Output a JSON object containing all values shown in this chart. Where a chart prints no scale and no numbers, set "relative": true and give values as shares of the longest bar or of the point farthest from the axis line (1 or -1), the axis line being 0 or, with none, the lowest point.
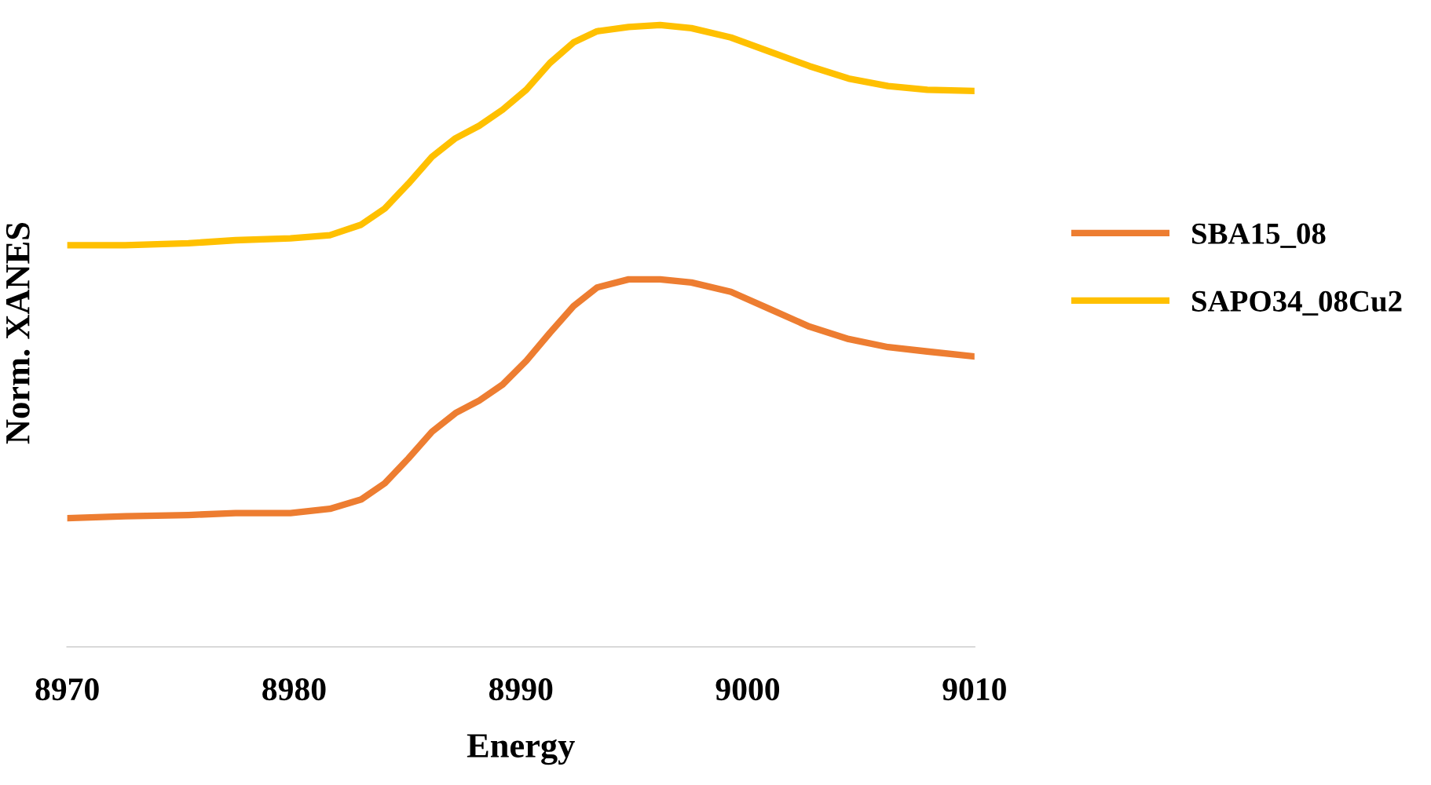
{
  "chart_data": {
    "type": "line",
    "relative": true,
    "xlabel": "Energy",
    "ylabel": "Norm. XANES",
    "xlim": [
      8970,
      9010
    ],
    "xticks": [
      8970,
      8980,
      8990,
      9000,
      9010
    ],
    "grid": false,
    "legend": "right",
    "marker": "none",
    "line_style": "solid",
    "series": [
      {
        "name": "SBA15_08",
        "color": "#ed7d31",
        "x": [
          8970.0,
          8972.56,
          8975.34,
          8977.42,
          8979.84,
          8981.58,
          8982.96,
          8984.0,
          8985.04,
          8986.08,
          8987.12,
          8988.16,
          8989.2,
          8990.24,
          8991.28,
          8992.32,
          8993.36,
          8994.75,
          8996.14,
          8997.52,
          8999.26,
          9000.99,
          9002.72,
          9004.45,
          9006.19,
          9007.92,
          9010.0
        ],
        "values": [
          0.207,
          0.21,
          0.212,
          0.215,
          0.215,
          0.222,
          0.237,
          0.263,
          0.303,
          0.346,
          0.376,
          0.396,
          0.422,
          0.46,
          0.505,
          0.548,
          0.578,
          0.591,
          0.591,
          0.586,
          0.571,
          0.543,
          0.515,
          0.495,
          0.482,
          0.475,
          0.467
        ]
      },
      {
        "name": "SAPO34_08Cu2",
        "color": "#ffc000",
        "x": [
          8970.0,
          8972.56,
          8975.34,
          8977.42,
          8979.84,
          8981.58,
          8982.96,
          8984.0,
          8985.04,
          8986.08,
          8987.12,
          8988.16,
          8989.2,
          8990.24,
          8991.28,
          8992.32,
          8993.36,
          8994.75,
          8996.14,
          8997.52,
          8999.26,
          9000.99,
          9002.72,
          9004.45,
          9006.19,
          9007.92,
          9010.0
        ],
        "values": [
          0.646,
          0.646,
          0.649,
          0.654,
          0.657,
          0.662,
          0.679,
          0.705,
          0.745,
          0.788,
          0.818,
          0.838,
          0.864,
          0.896,
          0.939,
          0.972,
          0.99,
          0.997,
          1.0,
          0.995,
          0.98,
          0.957,
          0.934,
          0.914,
          0.902,
          0.896,
          0.894
        ]
      }
    ]
  }
}
